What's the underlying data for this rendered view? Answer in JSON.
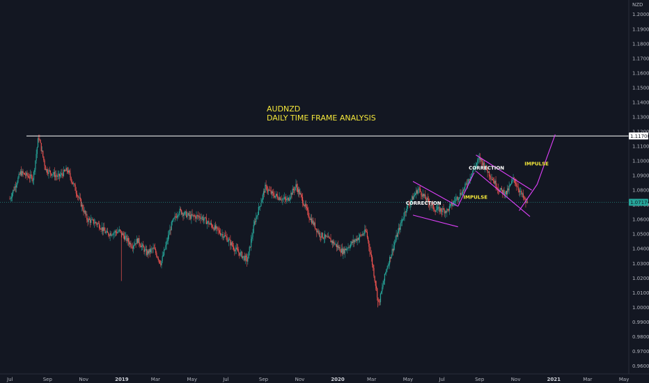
{
  "chart_data": {
    "type": "candlestick",
    "symbol": "AUDNZD",
    "timeframe": "Daily",
    "title_lines": [
      "AUDNZD",
      "DAILY TIME FRAME ANALYSIS"
    ],
    "currency_label": "NZD",
    "ylim": [
      0.955,
      1.207
    ],
    "y_ticks": [
      "1.20000",
      "1.19000",
      "1.18000",
      "1.17000",
      "1.16000",
      "1.15000",
      "1.14000",
      "1.13000",
      "1.12000",
      "1.11000",
      "1.10000",
      "1.09000",
      "1.08000",
      "1.07000",
      "1.06000",
      "1.05000",
      "1.04000",
      "1.03000",
      "1.02000",
      "1.01000",
      "1.00000",
      "0.99000",
      "0.98000",
      "0.97000",
      "0.96000"
    ],
    "x_ticks": [
      {
        "label": "Jul",
        "month_index": 0,
        "bold": false
      },
      {
        "label": "Sep",
        "month_index": 2,
        "bold": false
      },
      {
        "label": "Nov",
        "month_index": 4,
        "bold": false
      },
      {
        "label": "2019",
        "month_index": 6,
        "bold": true
      },
      {
        "label": "Mar",
        "month_index": 8,
        "bold": false
      },
      {
        "label": "May",
        "month_index": 10,
        "bold": false
      },
      {
        "label": "Jul",
        "month_index": 12,
        "bold": false
      },
      {
        "label": "Sep",
        "month_index": 14,
        "bold": false
      },
      {
        "label": "Nov",
        "month_index": 16,
        "bold": false
      },
      {
        "label": "2020",
        "month_index": 18,
        "bold": true
      },
      {
        "label": "Mar",
        "month_index": 20,
        "bold": false
      },
      {
        "label": "May",
        "month_index": 22,
        "bold": false
      },
      {
        "label": "Jul",
        "month_index": 24,
        "bold": false
      },
      {
        "label": "Sep",
        "month_index": 26,
        "bold": false
      },
      {
        "label": "Nov",
        "month_index": 28,
        "bold": false
      },
      {
        "label": "2021",
        "month_index": 30,
        "bold": true
      },
      {
        "label": "Mar",
        "month_index": 32,
        "bold": false
      },
      {
        "label": "May",
        "month_index": 34,
        "bold": false
      }
    ],
    "path_keypoints": [
      [
        0.0,
        1.074
      ],
      [
        0.6,
        1.092
      ],
      [
        1.3,
        1.088
      ],
      [
        1.6,
        1.117
      ],
      [
        2.0,
        1.094
      ],
      [
        2.7,
        1.089
      ],
      [
        3.2,
        1.094
      ],
      [
        3.6,
        1.082
      ],
      [
        4.3,
        1.06
      ],
      [
        4.9,
        1.057
      ],
      [
        5.4,
        1.05
      ],
      [
        6.1,
        1.052
      ],
      [
        6.8,
        1.042
      ],
      [
        7.1,
        1.046
      ],
      [
        7.6,
        1.037
      ],
      [
        8.0,
        1.04
      ],
      [
        8.4,
        1.03
      ],
      [
        9.0,
        1.057
      ],
      [
        9.4,
        1.066
      ],
      [
        10.0,
        1.062
      ],
      [
        10.6,
        1.062
      ],
      [
        11.3,
        1.055
      ],
      [
        12.0,
        1.048
      ],
      [
        12.5,
        1.04
      ],
      [
        13.2,
        1.032
      ],
      [
        13.6,
        1.058
      ],
      [
        14.2,
        1.082
      ],
      [
        14.6,
        1.077
      ],
      [
        15.4,
        1.073
      ],
      [
        15.9,
        1.083
      ],
      [
        16.2,
        1.075
      ],
      [
        16.6,
        1.063
      ],
      [
        17.2,
        1.05
      ],
      [
        17.9,
        1.045
      ],
      [
        18.5,
        1.038
      ],
      [
        19.1,
        1.045
      ],
      [
        19.8,
        1.052
      ],
      [
        20.1,
        1.033
      ],
      [
        20.5,
        1.002
      ],
      [
        20.9,
        1.025
      ],
      [
        21.4,
        1.045
      ],
      [
        22.0,
        1.067
      ],
      [
        22.7,
        1.081
      ],
      [
        23.1,
        1.074
      ],
      [
        23.6,
        1.067
      ],
      [
        24.3,
        1.066
      ],
      [
        24.8,
        1.074
      ],
      [
        25.2,
        1.08
      ],
      [
        25.8,
        1.095
      ],
      [
        26.1,
        1.102
      ],
      [
        26.7,
        1.09
      ],
      [
        27.2,
        1.08
      ],
      [
        27.6,
        1.078
      ],
      [
        28.0,
        1.088
      ],
      [
        28.3,
        1.08
      ],
      [
        28.7,
        1.071
      ],
      [
        28.8,
        1.072
      ]
    ],
    "low_outliers": [
      [
        6.2,
        1.018
      ],
      [
        20.45,
        1.0
      ]
    ],
    "last_price": "1.07174",
    "resistance": {
      "value": 1.117,
      "label": "1.11700"
    },
    "channels": [
      {
        "name": "correction-1",
        "upper": [
          [
            22.4,
            1.086
          ],
          [
            24.9,
            1.069
          ]
        ],
        "lower": [
          [
            22.4,
            1.063
          ],
          [
            24.9,
            1.055
          ]
        ]
      },
      {
        "name": "correction-2",
        "upper": [
          [
            25.9,
            1.104
          ],
          [
            29.0,
            1.08
          ]
        ],
        "lower": [
          [
            25.9,
            1.093
          ],
          [
            28.9,
            1.062
          ]
        ]
      }
    ],
    "projections": [
      {
        "name": "impulse-1",
        "points": [
          [
            24.9,
            1.069
          ],
          [
            25.8,
            1.092
          ]
        ]
      },
      {
        "name": "impulse-2",
        "points": [
          [
            28.3,
            1.066
          ],
          [
            29.3,
            1.084
          ],
          [
            30.3,
            1.118
          ]
        ]
      }
    ],
    "annotations": [
      {
        "text": "CORRECTION",
        "at": [
          22.0,
          1.07
        ],
        "color": "#ffffff"
      },
      {
        "text": "IMPULSE",
        "at": [
          25.2,
          1.074
        ],
        "color": "#f5e83b"
      },
      {
        "text": "CORRECTION",
        "at": [
          25.5,
          1.094
        ],
        "color": "#ffffff"
      },
      {
        "text": "IMPULSE",
        "at": [
          28.6,
          1.097
        ],
        "color": "#f5e83b"
      }
    ],
    "colors": {
      "up": "#26a69a",
      "down": "#ef5350",
      "channel": "#e040fb",
      "label": "#f5e83b",
      "resistance": "#ffffff",
      "last": "#26a69a"
    },
    "grid": false
  }
}
